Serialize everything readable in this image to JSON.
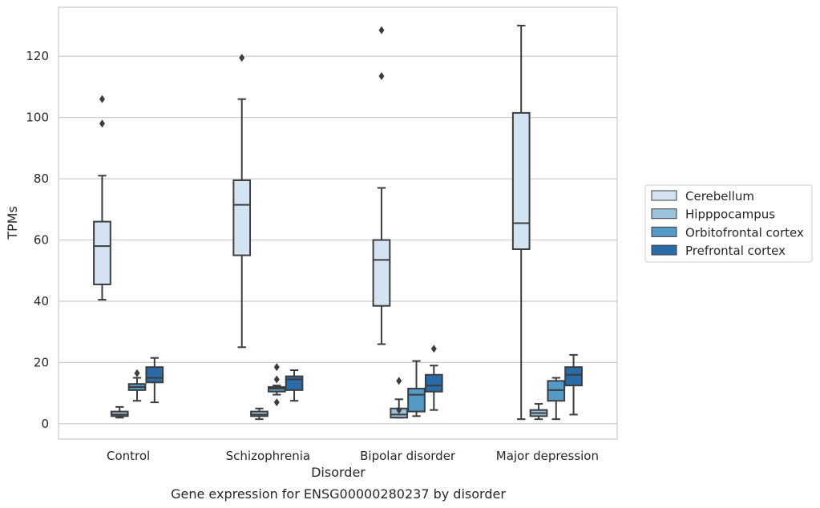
{
  "chart_data": {
    "type": "box",
    "title": "",
    "caption": "Gene expression for ENSG00000280237 by disorder",
    "xlabel": "Disorder",
    "ylabel": "TPMs",
    "ylim": [
      -5,
      136
    ],
    "yticks": [
      0,
      20,
      40,
      60,
      80,
      100,
      120
    ],
    "grid": true,
    "legend_position": "right",
    "categories": [
      "Control",
      "Schizophrenia",
      "Bipolar disorder",
      "Major depression"
    ],
    "series": [
      {
        "name": "Cerebellum",
        "color": "#d4e3f2",
        "boxes": [
          {
            "whislo": 40.5,
            "q1": 45.5,
            "med": 58.0,
            "q3": 66.0,
            "whishi": 81.0,
            "fliers": [
              98.0,
              106.0
            ]
          },
          {
            "whislo": 25.0,
            "q1": 55.0,
            "med": 71.5,
            "q3": 79.5,
            "whishi": 106.0,
            "fliers": [
              119.5
            ]
          },
          {
            "whislo": 26.0,
            "q1": 38.5,
            "med": 53.5,
            "q3": 60.0,
            "whishi": 77.0,
            "fliers": [
              113.5,
              128.5
            ]
          },
          {
            "whislo": 1.5,
            "q1": 57.0,
            "med": 65.5,
            "q3": 101.5,
            "whishi": 130.0,
            "fliers": []
          }
        ]
      },
      {
        "name": "Hipppocampus",
        "color": "#9ac2dc",
        "boxes": [
          {
            "whislo": 2.0,
            "q1": 2.5,
            "med": 3.0,
            "q3": 4.0,
            "whishi": 5.5,
            "fliers": []
          },
          {
            "whislo": 1.5,
            "q1": 2.5,
            "med": 3.0,
            "q3": 4.0,
            "whishi": 5.0,
            "fliers": []
          },
          {
            "whislo": 2.0,
            "q1": 2.0,
            "med": 3.0,
            "q3": 5.0,
            "whishi": 8.0,
            "fliers": [
              4.5,
              14.0
            ]
          },
          {
            "whislo": 1.5,
            "q1": 2.5,
            "med": 3.5,
            "q3": 4.5,
            "whishi": 6.5,
            "fliers": []
          }
        ]
      },
      {
        "name": "Orbitofrontal cortex",
        "color": "#5599c8",
        "boxes": [
          {
            "whislo": 7.5,
            "q1": 11.0,
            "med": 12.0,
            "q3": 13.0,
            "whishi": 15.0,
            "fliers": [
              16.5
            ]
          },
          {
            "whislo": 9.5,
            "q1": 10.5,
            "med": 11.5,
            "q3": 12.0,
            "whishi": 12.5,
            "fliers": [
              7.0,
              14.5,
              18.5
            ]
          },
          {
            "whislo": 2.5,
            "q1": 4.0,
            "med": 9.5,
            "q3": 11.5,
            "whishi": 20.5,
            "fliers": []
          },
          {
            "whislo": 1.5,
            "q1": 7.5,
            "med": 11.0,
            "q3": 14.0,
            "whishi": 15.0,
            "fliers": []
          }
        ]
      },
      {
        "name": "Prefrontal cortex",
        "color": "#2b6ba8",
        "boxes": [
          {
            "whislo": 7.0,
            "q1": 13.5,
            "med": 15.0,
            "q3": 18.5,
            "whishi": 21.5,
            "fliers": []
          },
          {
            "whislo": 7.5,
            "q1": 11.0,
            "med": 14.5,
            "q3": 15.5,
            "whishi": 17.5,
            "fliers": []
          },
          {
            "whislo": 4.5,
            "q1": 10.5,
            "med": 12.5,
            "q3": 16.0,
            "whishi": 19.0,
            "fliers": [
              24.5
            ]
          },
          {
            "whislo": 3.0,
            "q1": 12.5,
            "med": 16.0,
            "q3": 18.5,
            "whishi": 22.5,
            "fliers": []
          }
        ]
      }
    ]
  }
}
